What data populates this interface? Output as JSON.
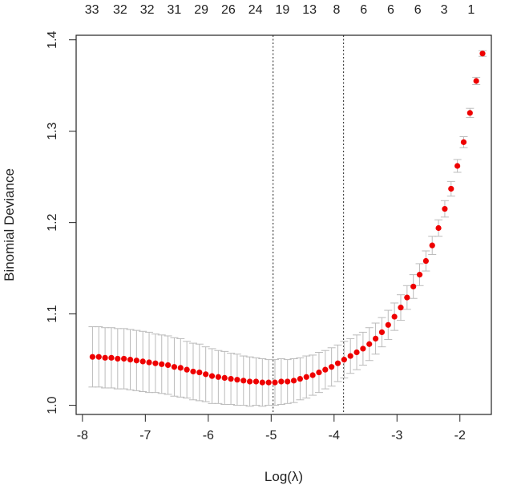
{
  "chart_data": {
    "type": "scatter",
    "xlabel": "Log(λ)",
    "ylabel": "Binomial Deviance",
    "xlim": [
      -8.1,
      -1.5
    ],
    "ylim": [
      0.99,
      1.405
    ],
    "x_ticks": [
      -8,
      -7,
      -6,
      -5,
      -4,
      -3,
      -2
    ],
    "y_ticks": [
      1.0,
      1.1,
      1.2,
      1.3,
      1.4
    ],
    "x_tick_labels": [
      "-8",
      "-7",
      "-6",
      "-5",
      "-4",
      "-3",
      "-2"
    ],
    "y_tick_labels": [
      "1.0",
      "1.1",
      "1.2",
      "1.3",
      "1.4"
    ],
    "top_axis": {
      "x": [
        -7.85,
        -7.4,
        -6.97,
        -6.54,
        -6.11,
        -5.68,
        -5.25,
        -4.82,
        -4.39,
        -3.96,
        -3.53,
        -3.1,
        -2.67,
        -2.25,
        -1.82
      ],
      "labels": [
        "33",
        "32",
        "32",
        "31",
        "29",
        "26",
        "24",
        "19",
        "13",
        "8",
        "6",
        "6",
        "6",
        "3",
        "1"
      ]
    },
    "vlines": [
      -4.97,
      -3.85
    ],
    "colors": {
      "point": "#ee0000",
      "error_bar": "#bbbbbb",
      "frame": "#222222",
      "vline": "#444444"
    },
    "series": [
      {
        "x": [
          -7.84,
          -7.74,
          -7.64,
          -7.54,
          -7.44,
          -7.34,
          -7.24,
          -7.14,
          -7.04,
          -6.94,
          -6.84,
          -6.74,
          -6.64,
          -6.54,
          -6.44,
          -6.34,
          -6.24,
          -6.14,
          -6.04,
          -5.94,
          -5.84,
          -5.74,
          -5.64,
          -5.54,
          -5.44,
          -5.34,
          -5.24,
          -5.14,
          -5.04,
          -4.94,
          -4.84,
          -4.74,
          -4.64,
          -4.54,
          -4.44,
          -4.34,
          -4.24,
          -4.14,
          -4.04,
          -3.94,
          -3.84,
          -3.74,
          -3.64,
          -3.54,
          -3.44,
          -3.34,
          -3.24,
          -3.14,
          -3.04,
          -2.94,
          -2.84,
          -2.74,
          -2.64,
          -2.54,
          -2.44,
          -2.34,
          -2.24,
          -2.14,
          -2.04,
          -1.94,
          -1.84,
          -1.74,
          -1.64
        ],
        "y": [
          1.053,
          1.053,
          1.052,
          1.052,
          1.051,
          1.051,
          1.05,
          1.049,
          1.048,
          1.047,
          1.046,
          1.045,
          1.044,
          1.042,
          1.041,
          1.039,
          1.037,
          1.036,
          1.034,
          1.032,
          1.031,
          1.03,
          1.029,
          1.028,
          1.027,
          1.026,
          1.026,
          1.025,
          1.025,
          1.025,
          1.026,
          1.026,
          1.027,
          1.029,
          1.031,
          1.033,
          1.036,
          1.039,
          1.042,
          1.046,
          1.05,
          1.054,
          1.058,
          1.062,
          1.067,
          1.073,
          1.08,
          1.088,
          1.097,
          1.107,
          1.118,
          1.13,
          1.143,
          1.158,
          1.175,
          1.194,
          1.215,
          1.237,
          1.262,
          1.288,
          1.32,
          1.355,
          1.385
        ],
        "err": [
          0.033,
          0.033,
          0.033,
          0.033,
          0.033,
          0.033,
          0.033,
          0.033,
          0.033,
          0.033,
          0.032,
          0.032,
          0.032,
          0.032,
          0.032,
          0.031,
          0.031,
          0.031,
          0.03,
          0.03,
          0.029,
          0.029,
          0.028,
          0.028,
          0.027,
          0.027,
          0.026,
          0.026,
          0.025,
          0.025,
          0.025,
          0.024,
          0.024,
          0.023,
          0.023,
          0.022,
          0.022,
          0.021,
          0.021,
          0.02,
          0.02,
          0.019,
          0.019,
          0.018,
          0.018,
          0.017,
          0.016,
          0.016,
          0.015,
          0.014,
          0.013,
          0.013,
          0.012,
          0.011,
          0.01,
          0.009,
          0.009,
          0.008,
          0.007,
          0.006,
          0.005,
          0.004,
          0.003
        ]
      }
    ]
  }
}
